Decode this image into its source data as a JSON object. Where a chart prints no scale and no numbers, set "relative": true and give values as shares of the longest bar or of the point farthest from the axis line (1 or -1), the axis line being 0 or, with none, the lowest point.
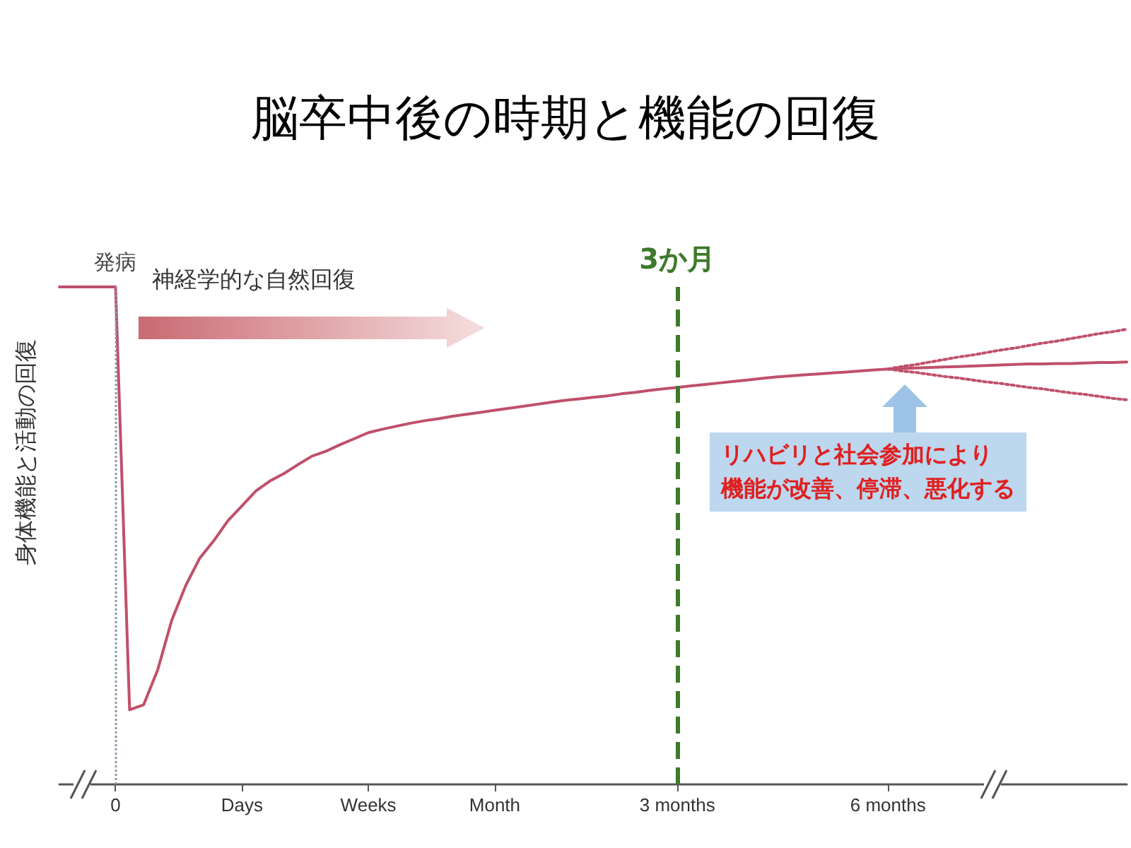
{
  "chart_data": {
    "type": "line",
    "title": "脳卒中後の時期と機能の回復",
    "ylabel": "身体機能と活動の回復",
    "relative": true,
    "grid": false,
    "marker": "none",
    "categories": [
      null,
      null,
      null,
      null,
      "0",
      null,
      null,
      null,
      null,
      null,
      null,
      null,
      null,
      "Days",
      null,
      null,
      null,
      null,
      null,
      null,
      null,
      null,
      "Weeks",
      null,
      null,
      null,
      null,
      null,
      null,
      null,
      null,
      "Month",
      null,
      null,
      null,
      null,
      null,
      null,
      null,
      null,
      null,
      null,
      null,
      null,
      "3 months",
      null,
      null,
      null,
      null,
      null,
      null,
      null,
      null,
      null,
      null,
      null,
      null,
      null,
      null,
      "6 months",
      null,
      null,
      null,
      null,
      null,
      null,
      null,
      null,
      null,
      null,
      null,
      null,
      null,
      null,
      null,
      null,
      null
    ],
    "series": [
      {
        "color": "#c0506a",
        "line_style": "solid",
        "values": [
          1,
          1,
          1,
          1,
          1,
          0.15,
          0.16,
          0.23,
          0.33,
          0.4,
          0.455,
          0.49,
          0.53,
          0.56,
          0.59,
          0.61,
          0.625,
          0.643,
          0.66,
          0.67,
          0.683,
          0.695,
          0.707,
          0.714,
          0.72,
          0.726,
          0.731,
          0.735,
          0.74,
          0.744,
          0.748,
          0.752,
          0.756,
          0.76,
          0.764,
          0.768,
          0.772,
          0.775,
          0.778,
          0.781,
          0.785,
          0.788,
          0.792,
          0.795,
          0.798,
          0.801,
          0.804,
          0.807,
          0.81,
          0.813,
          0.816,
          0.819,
          0.821,
          0.823,
          0.825,
          0.827,
          0.829,
          0.831,
          0.833,
          0.835,
          0.836,
          0.837,
          0.838,
          0.839,
          0.84,
          0.841,
          0.842,
          0.843,
          0.844,
          0.845,
          0.845,
          0.846,
          0.846,
          0.847,
          0.848,
          0.848,
          0.849
        ]
      },
      {
        "color": "#c0506a",
        "line_style": "dotted",
        "values": [
          null,
          null,
          null,
          null,
          null,
          null,
          null,
          null,
          null,
          null,
          null,
          null,
          null,
          null,
          null,
          null,
          null,
          null,
          null,
          null,
          null,
          null,
          null,
          null,
          null,
          null,
          null,
          null,
          null,
          null,
          null,
          null,
          null,
          null,
          null,
          null,
          null,
          null,
          null,
          null,
          null,
          null,
          null,
          null,
          null,
          null,
          null,
          null,
          null,
          null,
          null,
          null,
          null,
          null,
          null,
          null,
          null,
          null,
          null,
          0.835,
          0.84,
          0.844,
          0.849,
          0.854,
          0.859,
          0.863,
          0.868,
          0.873,
          0.877,
          0.882,
          0.887,
          0.891,
          0.896,
          0.901,
          0.906,
          0.91,
          0.915
        ]
      },
      {
        "color": "#c0506a",
        "line_style": "dotted",
        "values": [
          null,
          null,
          null,
          null,
          null,
          null,
          null,
          null,
          null,
          null,
          null,
          null,
          null,
          null,
          null,
          null,
          null,
          null,
          null,
          null,
          null,
          null,
          null,
          null,
          null,
          null,
          null,
          null,
          null,
          null,
          null,
          null,
          null,
          null,
          null,
          null,
          null,
          null,
          null,
          null,
          null,
          null,
          null,
          null,
          null,
          null,
          null,
          null,
          null,
          null,
          null,
          null,
          null,
          null,
          null,
          null,
          null,
          null,
          null,
          0.835,
          0.831,
          0.828,
          0.824,
          0.82,
          0.817,
          0.813,
          0.809,
          0.806,
          0.802,
          0.798,
          0.795,
          0.791,
          0.787,
          0.784,
          0.78,
          0.776,
          0.773
        ]
      }
    ],
    "ref_lines": [
      {
        "axis": "x",
        "value": "0",
        "label": "発病",
        "color": "#8899aa",
        "line_style": "dotted"
      },
      {
        "axis": "x",
        "value": "3 months",
        "label": "3か月",
        "color": "#3d7a2a",
        "line_style": "dashed"
      }
    ],
    "annotations": [
      "神経学的な自然回復",
      "リハビリと社会参加により",
      "機能が改善、停滞、悪化する"
    ]
  }
}
